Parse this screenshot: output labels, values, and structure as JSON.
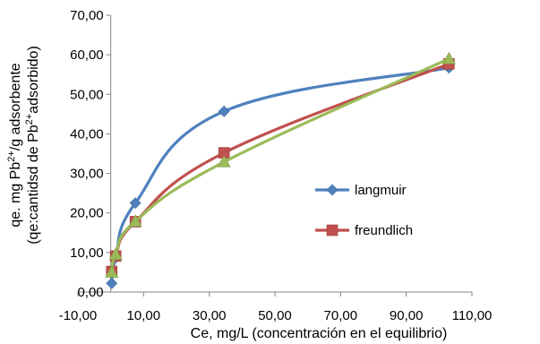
{
  "chart_data": {
    "type": "scatter",
    "xlabel": "Ce, mg/L (concentración en el equilibrio)",
    "ylabel_line1_parts": [
      "qe. mg Pb",
      "2+",
      "/g adsorbente"
    ],
    "ylabel_line2_parts": [
      "(qe:cantidsd de Pb",
      "2+",
      "adsorbido)"
    ],
    "xlim": [
      -10,
      110
    ],
    "ylim": [
      0,
      70
    ],
    "x_ticks": [
      "-10,00",
      "10,00",
      "30,00",
      "50,00",
      "70,00",
      "90,00",
      "110,00"
    ],
    "y_ticks": [
      "0,00",
      "10,00",
      "20,00",
      "30,00",
      "40,00",
      "50,00",
      "60,00",
      "70,00"
    ],
    "legend_position": "right",
    "series": [
      {
        "name": "langmuir",
        "color": "#4F81BD",
        "marker": "diamond",
        "x": [
          0.3,
          1.5,
          7.5,
          34.5,
          103
        ],
        "y": [
          2.2,
          8.7,
          22.5,
          45.7,
          56.7
        ]
      },
      {
        "name": "freundlich",
        "color": "#C0504D",
        "marker": "square",
        "x": [
          0.3,
          1.5,
          7.5,
          34.5,
          103
        ],
        "y": [
          5.2,
          9.1,
          17.8,
          35.2,
          57.7
        ]
      },
      {
        "name": "",
        "color": "#9BBB59",
        "marker": "triangle",
        "x": [
          0.3,
          1.5,
          7.5,
          34.5,
          103
        ],
        "y": [
          5.0,
          9.5,
          17.9,
          32.9,
          59.0
        ]
      }
    ]
  }
}
